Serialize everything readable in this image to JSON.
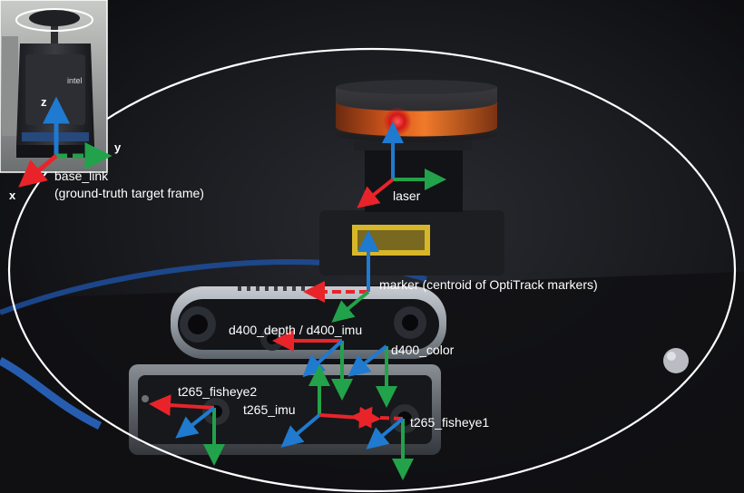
{
  "colors": {
    "x_axis": "#e8242a",
    "y_axis": "#22a24a",
    "z_axis": "#1f7ad0",
    "ellipse": "#ffffff"
  },
  "inset": {
    "robot_logo_text": "intel",
    "axis_z": "z",
    "axis_y": "y",
    "axis_x": "x"
  },
  "frames": {
    "base_link": "base_link",
    "base_link_note": "(ground-truth target frame)",
    "laser": "laser",
    "marker": "marker (centroid of OptiTrack markers)",
    "d400_depth_imu": "d400_depth / d400_imu",
    "d400_color": "d400_color",
    "t265_fisheye2": "t265_fisheye2",
    "t265_imu": "t265_imu",
    "t265_fisheye1": "t265_fisheye1"
  }
}
